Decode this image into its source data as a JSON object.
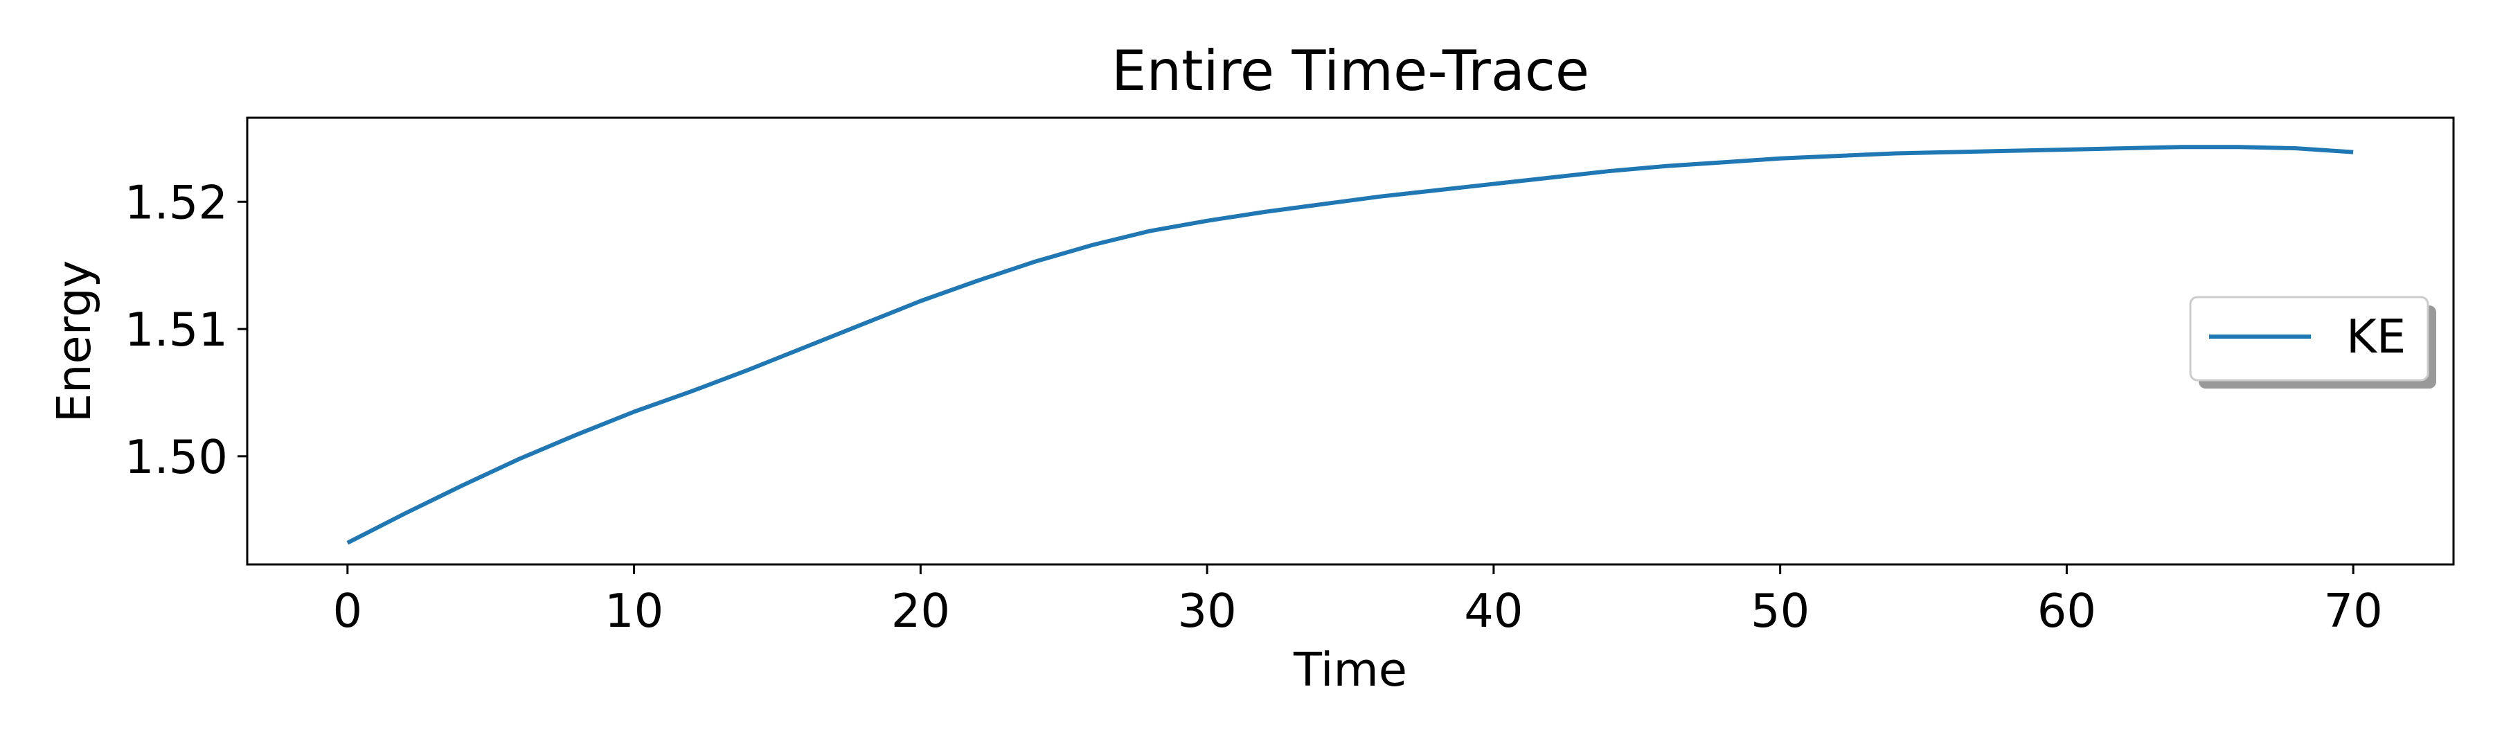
{
  "chart_data": {
    "type": "line",
    "title": "Entire Time-Trace",
    "xlabel": "Time",
    "ylabel": "Energy",
    "xlim": [
      -3.5,
      73.5
    ],
    "ylim": [
      1.4915,
      1.5266
    ],
    "xticks": [
      0,
      10,
      20,
      30,
      40,
      50,
      60,
      70
    ],
    "yticks": [
      1.5,
      1.51,
      1.52
    ],
    "xtick_labels": [
      "0",
      "10",
      "20",
      "30",
      "40",
      "50",
      "60",
      "70"
    ],
    "ytick_labels": [
      "1.50",
      "1.51",
      "1.52"
    ],
    "grid": false,
    "legend": {
      "location": "center right",
      "shadow": true,
      "entries": [
        "KE"
      ]
    },
    "series": [
      {
        "name": "KE",
        "color": "#1f77b4",
        "x": [
          0,
          2,
          4,
          6,
          8,
          10,
          12,
          14,
          16,
          18,
          20,
          22,
          24,
          26,
          28,
          30,
          32,
          34,
          36,
          38,
          40,
          42,
          44,
          46,
          48,
          50,
          52,
          54,
          56,
          58,
          60,
          62,
          64,
          65,
          66,
          68,
          70
        ],
        "y": [
          1.4932,
          1.4955,
          1.4977,
          1.4998,
          1.5017,
          1.5035,
          1.5051,
          1.5068,
          1.5086,
          1.5104,
          1.5122,
          1.5138,
          1.5153,
          1.5166,
          1.5177,
          1.5185,
          1.5192,
          1.5198,
          1.5204,
          1.5209,
          1.5214,
          1.5219,
          1.5224,
          1.5228,
          1.5231,
          1.5234,
          1.5236,
          1.5238,
          1.5239,
          1.524,
          1.5241,
          1.5242,
          1.5243,
          1.5243,
          1.5243,
          1.5242,
          1.5239
        ]
      }
    ]
  }
}
